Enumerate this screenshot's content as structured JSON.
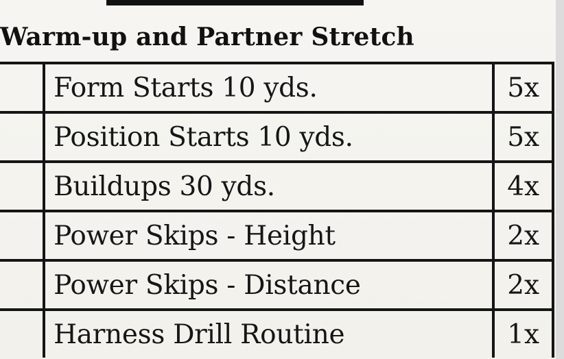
{
  "section": {
    "title": "Warm-up and Partner Stretch"
  },
  "drills": [
    {
      "name": "Form Starts 10 yds.",
      "reps": "5x"
    },
    {
      "name": "Position Starts 10 yds.",
      "reps": "5x"
    },
    {
      "name": "Buildups 30 yds.",
      "reps": "4x"
    },
    {
      "name": "Power Skips - Height",
      "reps": "2x"
    },
    {
      "name": "Power Skips - Distance",
      "reps": "2x"
    },
    {
      "name": "Harness Drill Routine",
      "reps": "1x"
    }
  ]
}
